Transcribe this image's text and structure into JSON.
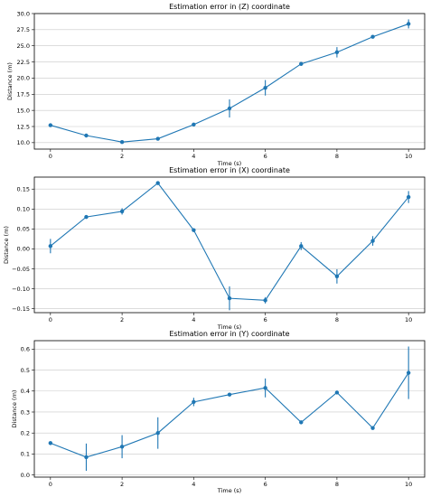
{
  "chart_data": [
    {
      "type": "line",
      "title": "Estimation error in (Z) coordinate",
      "xlabel": "Time (s)",
      "ylabel": "Distance (m)",
      "xlim": [
        -0.45,
        10.45
      ],
      "ylim": [
        9.0,
        30.0
      ],
      "xticks": [
        0,
        2,
        4,
        6,
        8,
        10
      ],
      "yticks": [
        10.0,
        12.5,
        15.0,
        17.5,
        20.0,
        22.5,
        25.0,
        27.5,
        30.0
      ],
      "ytick_labels": [
        "10.0",
        "12.5",
        "15.0",
        "17.5",
        "20.0",
        "22.5",
        "25.0",
        "27.5",
        "30.0"
      ],
      "grid": "y",
      "x": [
        0,
        1,
        2,
        3,
        4,
        5,
        6,
        7,
        8,
        9,
        10
      ],
      "y": [
        12.7,
        11.1,
        10.1,
        10.6,
        12.8,
        15.3,
        18.5,
        22.2,
        24.0,
        26.4,
        28.4
      ],
      "yerr": [
        0.15,
        0.25,
        0.15,
        0.15,
        0.15,
        1.4,
        1.2,
        0.3,
        0.8,
        0.15,
        0.7
      ]
    },
    {
      "type": "line",
      "title": "Estimation error in (X) coordinate",
      "xlabel": "Time (s)",
      "ylabel": "Distance (m)",
      "xlim": [
        -0.45,
        10.45
      ],
      "ylim": [
        -0.16,
        0.18
      ],
      "xticks": [
        0,
        2,
        4,
        6,
        8,
        10
      ],
      "yticks": [
        -0.15,
        -0.1,
        -0.05,
        0.0,
        0.05,
        0.1,
        0.15
      ],
      "ytick_labels": [
        "−0.15",
        "−0.10",
        "−0.05",
        "0.00",
        "0.05",
        "0.10",
        "0.15"
      ],
      "grid": "y",
      "x": [
        0,
        1,
        2,
        3,
        4,
        5,
        6,
        7,
        8,
        9,
        10
      ],
      "y": [
        0.007,
        0.08,
        0.094,
        0.165,
        0.047,
        -0.124,
        -0.129,
        0.007,
        -0.069,
        0.02,
        0.13
      ],
      "yerr": [
        0.018,
        0.003,
        0.008,
        0.003,
        0.003,
        0.03,
        0.008,
        0.01,
        0.018,
        0.012,
        0.015
      ]
    },
    {
      "type": "line",
      "title": "Estimation error in (Y) coordinate",
      "xlabel": "Time (s)",
      "ylabel": "Distance (m)",
      "xlim": [
        -0.45,
        10.45
      ],
      "ylim": [
        -0.01,
        0.64
      ],
      "xticks": [
        0,
        2,
        4,
        6,
        8,
        10
      ],
      "yticks": [
        0.0,
        0.1,
        0.2,
        0.3,
        0.4,
        0.5,
        0.6
      ],
      "ytick_labels": [
        "0.0",
        "0.1",
        "0.2",
        "0.3",
        "0.4",
        "0.5",
        "0.6"
      ],
      "grid": "y",
      "x": [
        0,
        1,
        2,
        3,
        4,
        5,
        6,
        7,
        8,
        9,
        10
      ],
      "y": [
        0.152,
        0.085,
        0.135,
        0.2,
        0.348,
        0.383,
        0.415,
        0.251,
        0.393,
        0.224,
        0.487
      ],
      "yerr": [
        0.003,
        0.065,
        0.055,
        0.075,
        0.02,
        0.005,
        0.045,
        0.005,
        0.003,
        0.005,
        0.125
      ]
    }
  ]
}
